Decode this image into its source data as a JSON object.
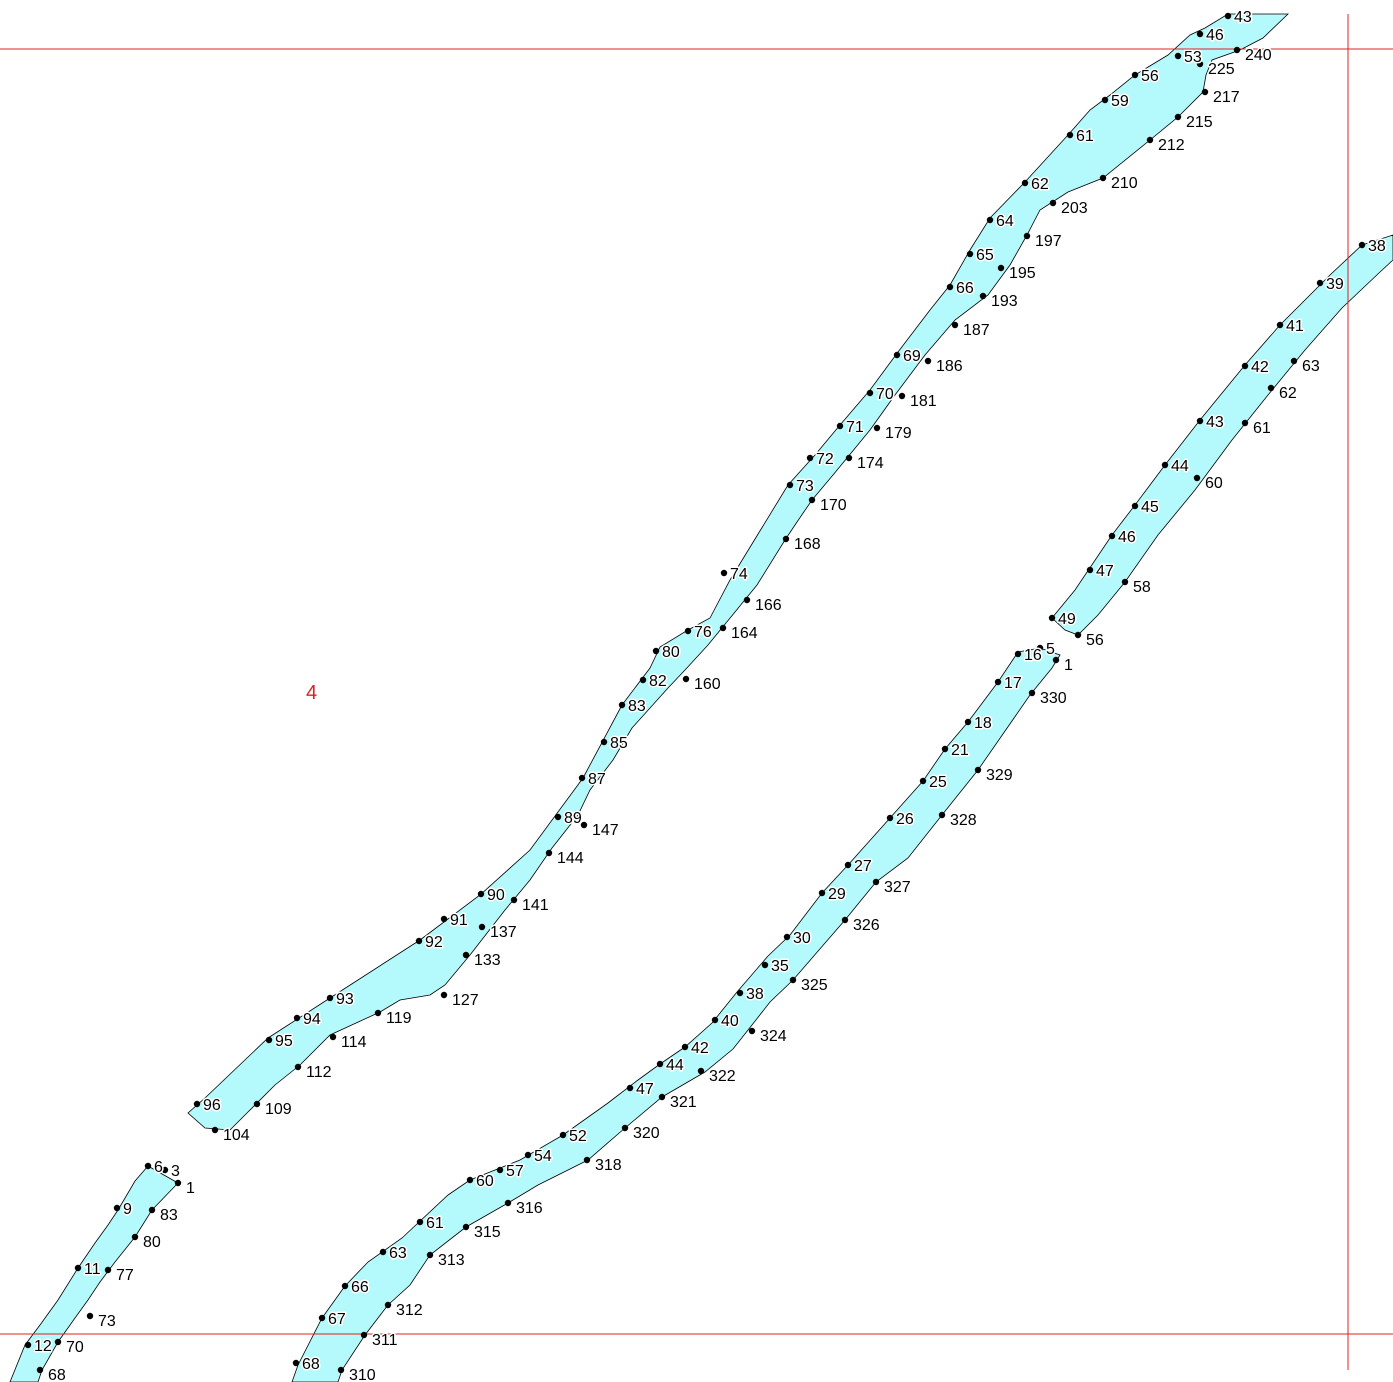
{
  "map": {
    "sheet_number": "4",
    "colors": {
      "band_fill": "#b4f9fb",
      "outline": "#000000",
      "guide_lines": "#e02020",
      "vertex": "#000000"
    },
    "bands": [
      {
        "id": "band-a",
        "left_labels": [
          "43",
          "46",
          "53",
          "56",
          "59",
          "61",
          "62",
          "64",
          "65",
          "66",
          "69",
          "70",
          "71",
          "72",
          "73",
          "74",
          "76",
          "80",
          "82",
          "83",
          "85",
          "87",
          "89",
          "90",
          "91",
          "92",
          "93",
          "94",
          "95",
          "96"
        ],
        "right_labels": [
          "240",
          "225",
          "217",
          "215",
          "212",
          "210",
          "203",
          "197",
          "195",
          "193",
          "187",
          "186",
          "181",
          "179",
          "174",
          "170",
          "168",
          "166",
          "164",
          "160",
          "147",
          "144",
          "141",
          "137",
          "133",
          "127",
          "119",
          "114",
          "112",
          "109",
          "104"
        ]
      },
      {
        "id": "band-b",
        "left_labels": [
          "38",
          "39",
          "41",
          "42",
          "43",
          "44",
          "45",
          "46",
          "47",
          "49"
        ],
        "right_labels": [
          "63",
          "62",
          "61",
          "60",
          "58",
          "56"
        ]
      },
      {
        "id": "band-c",
        "left_labels": [
          "5",
          "16",
          "17",
          "18",
          "21",
          "25",
          "26",
          "27",
          "29",
          "30",
          "35",
          "38",
          "40",
          "42",
          "44",
          "47",
          "52",
          "54",
          "57",
          "60",
          "61",
          "63",
          "66",
          "67",
          "68"
        ],
        "right_labels": [
          "1",
          "330",
          "329",
          "328",
          "327",
          "326",
          "325",
          "324",
          "322",
          "321",
          "320",
          "318",
          "316",
          "315",
          "313",
          "312",
          "311",
          "310"
        ]
      },
      {
        "id": "band-d",
        "left_labels": [
          "6",
          "3",
          "9",
          "11",
          "12"
        ],
        "right_labels": [
          "1",
          "83",
          "80",
          "77",
          "73",
          "70",
          "68"
        ]
      }
    ]
  }
}
